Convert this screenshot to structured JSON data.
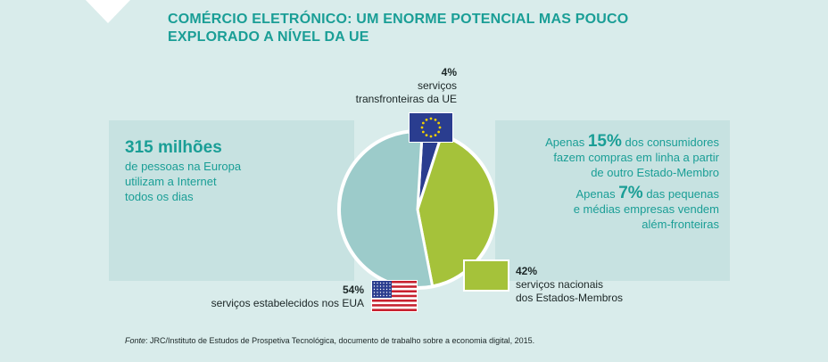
{
  "title": "COMÉRCIO ELETRÓNICO: UM ENORME POTENCIAL MAS POUCO EXPLORADO A NÍVEL DA UE",
  "left_stat": {
    "number": "315 milhões",
    "line1": "de pessoas na Europa",
    "line2": "utilizam a Internet",
    "line3": "todos os dias"
  },
  "right_stats": {
    "s1_pre": "Apenas",
    "s1_pct": "15%",
    "s1_post": "dos consumidores",
    "s1_line2": "fazem compras em linha a partir",
    "s1_line3": "de outro Estado-Membro",
    "s2_pre": "Apenas",
    "s2_pct": "7%",
    "s2_post": "das pequenas",
    "s2_line2": "e médias empresas vendem",
    "s2_line3": "além-fronteiras"
  },
  "chart_data": {
    "type": "pie",
    "title": "",
    "slices": [
      {
        "key": "eu",
        "label_pct": "4%",
        "label_line1": "serviços",
        "label_line2": "transfronteiras da UE",
        "value": 4,
        "color": "#2a3d8f"
      },
      {
        "key": "national",
        "label_pct": "42%",
        "label_line1": "serviços nacionais",
        "label_line2": "dos Estados-Membros",
        "value": 42,
        "color": "#a5c23a"
      },
      {
        "key": "us",
        "label_pct": "54%",
        "label_line1": "serviços estabelecidos nos EUA",
        "label_line2": "",
        "value": 54,
        "color": "#9ccbca"
      }
    ]
  },
  "footnote": {
    "label": "Fonte",
    "text": ": JRC/Instituto de Estudos de Prospetiva Tecnológica, documento de trabalho sobre a economia digital, 2015."
  },
  "colors": {
    "accent": "#1a9e96",
    "background": "#d9eceb"
  }
}
